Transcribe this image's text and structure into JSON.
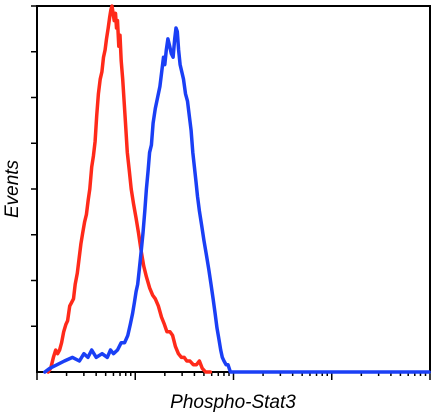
{
  "chart_data": {
    "type": "line",
    "xlabel": "Phospho-Stat3",
    "ylabel": "Events",
    "x_scale": "log",
    "xlim": [
      1,
      10000
    ],
    "ylim": [
      0,
      100
    ],
    "grid": false,
    "legend": "none",
    "series": [
      {
        "color": "#ff2a1a",
        "points": [
          [
            1.3,
            0
          ],
          [
            1.38,
            1
          ],
          [
            1.47,
            4
          ],
          [
            1.55,
            6
          ],
          [
            1.62,
            5
          ],
          [
            1.7,
            6
          ],
          [
            1.78,
            8
          ],
          [
            1.87,
            11
          ],
          [
            1.97,
            13
          ],
          [
            2.05,
            14
          ],
          [
            2.15,
            18
          ],
          [
            2.25,
            19
          ],
          [
            2.35,
            20
          ],
          [
            2.45,
            24
          ],
          [
            2.57,
            27
          ],
          [
            2.68,
            31
          ],
          [
            2.8,
            35
          ],
          [
            2.92,
            38
          ],
          [
            3.05,
            41
          ],
          [
            3.18,
            43
          ],
          [
            3.32,
            47
          ],
          [
            3.45,
            50
          ],
          [
            3.6,
            56
          ],
          [
            3.75,
            59
          ],
          [
            3.9,
            63
          ],
          [
            4.05,
            70
          ],
          [
            4.22,
            76
          ],
          [
            4.4,
            80
          ],
          [
            4.58,
            82
          ],
          [
            4.75,
            86
          ],
          [
            4.93,
            88
          ],
          [
            5.1,
            91
          ],
          [
            5.3,
            94
          ],
          [
            5.5,
            97
          ],
          [
            5.65,
            99
          ],
          [
            5.8,
            100
          ],
          [
            5.95,
            98
          ],
          [
            6.1,
            96
          ],
          [
            6.3,
            98
          ],
          [
            6.45,
            94
          ],
          [
            6.6,
            96
          ],
          [
            6.8,
            89
          ],
          [
            7.0,
            92
          ],
          [
            7.2,
            85
          ],
          [
            7.45,
            80
          ],
          [
            7.7,
            74
          ],
          [
            7.95,
            68
          ],
          [
            8.3,
            60
          ],
          [
            8.7,
            55
          ],
          [
            9.1,
            50
          ],
          [
            9.6,
            46
          ],
          [
            10.2,
            42
          ],
          [
            10.8,
            38
          ],
          [
            11.5,
            33
          ],
          [
            12.2,
            29
          ],
          [
            13.0,
            26
          ],
          [
            14.0,
            23
          ],
          [
            15.0,
            21
          ],
          [
            16.0,
            20
          ],
          [
            17.2,
            18
          ],
          [
            18.5,
            15
          ],
          [
            19.8,
            13
          ],
          [
            21.0,
            11
          ],
          [
            22.5,
            11
          ],
          [
            24.0,
            10
          ],
          [
            25.6,
            7
          ],
          [
            27.5,
            5
          ],
          [
            29.5,
            4
          ],
          [
            31.5,
            4
          ],
          [
            33.5,
            3
          ],
          [
            36.0,
            3
          ],
          [
            39.0,
            2
          ],
          [
            42.0,
            2
          ],
          [
            45.0,
            3
          ],
          [
            48.0,
            1
          ],
          [
            52.0,
            0
          ],
          [
            58.0,
            0
          ]
        ]
      },
      {
        "color": "#1a3ff5",
        "points": [
          [
            1.2,
            0
          ],
          [
            1.35,
            1
          ],
          [
            1.6,
            2
          ],
          [
            1.9,
            3
          ],
          [
            2.3,
            4
          ],
          [
            2.7,
            3
          ],
          [
            3.0,
            5
          ],
          [
            3.3,
            4
          ],
          [
            3.6,
            6
          ],
          [
            4.0,
            4
          ],
          [
            4.6,
            5
          ],
          [
            5.2,
            4
          ],
          [
            5.6,
            6
          ],
          [
            6.0,
            5
          ],
          [
            6.6,
            6
          ],
          [
            7.2,
            8
          ],
          [
            7.8,
            8
          ],
          [
            8.4,
            10
          ],
          [
            8.9,
            13
          ],
          [
            9.4,
            16
          ],
          [
            9.8,
            19
          ],
          [
            10.2,
            22
          ],
          [
            10.6,
            24
          ],
          [
            11.0,
            28
          ],
          [
            11.5,
            33
          ],
          [
            12.0,
            38
          ],
          [
            12.5,
            44
          ],
          [
            13.0,
            50
          ],
          [
            13.5,
            55
          ],
          [
            14.0,
            60
          ],
          [
            14.6,
            62
          ],
          [
            15.2,
            68
          ],
          [
            16.0,
            72
          ],
          [
            16.9,
            75
          ],
          [
            17.8,
            78
          ],
          [
            18.6,
            82
          ],
          [
            19.4,
            86
          ],
          [
            20.0,
            84
          ],
          [
            20.7,
            88
          ],
          [
            21.5,
            91
          ],
          [
            22.4,
            89
          ],
          [
            23.3,
            87
          ],
          [
            24.3,
            86
          ],
          [
            25.2,
            91
          ],
          [
            26.0,
            94
          ],
          [
            26.8,
            93
          ],
          [
            27.6,
            88
          ],
          [
            28.6,
            84
          ],
          [
            29.8,
            82
          ],
          [
            31.0,
            80
          ],
          [
            32.5,
            76
          ],
          [
            34.0,
            74
          ],
          [
            35.5,
            70
          ],
          [
            37.0,
            66
          ],
          [
            38.5,
            60
          ],
          [
            40.0,
            56
          ],
          [
            41.5,
            52
          ],
          [
            43.0,
            48
          ],
          [
            45.0,
            44
          ],
          [
            47.5,
            40
          ],
          [
            50.0,
            36
          ],
          [
            53.0,
            32
          ],
          [
            56.0,
            28
          ],
          [
            59.0,
            24
          ],
          [
            62.0,
            20
          ],
          [
            65.0,
            16
          ],
          [
            68.0,
            12
          ],
          [
            71.0,
            9
          ],
          [
            74.0,
            6
          ],
          [
            77.0,
            4
          ],
          [
            80.0,
            3
          ],
          [
            84.0,
            2
          ],
          [
            88.0,
            2
          ],
          [
            93.0,
            0
          ],
          [
            100.0,
            0
          ],
          [
            150.0,
            0
          ],
          [
            400.0,
            0
          ],
          [
            1500.0,
            0
          ],
          [
            9800.0,
            0
          ]
        ]
      }
    ]
  }
}
